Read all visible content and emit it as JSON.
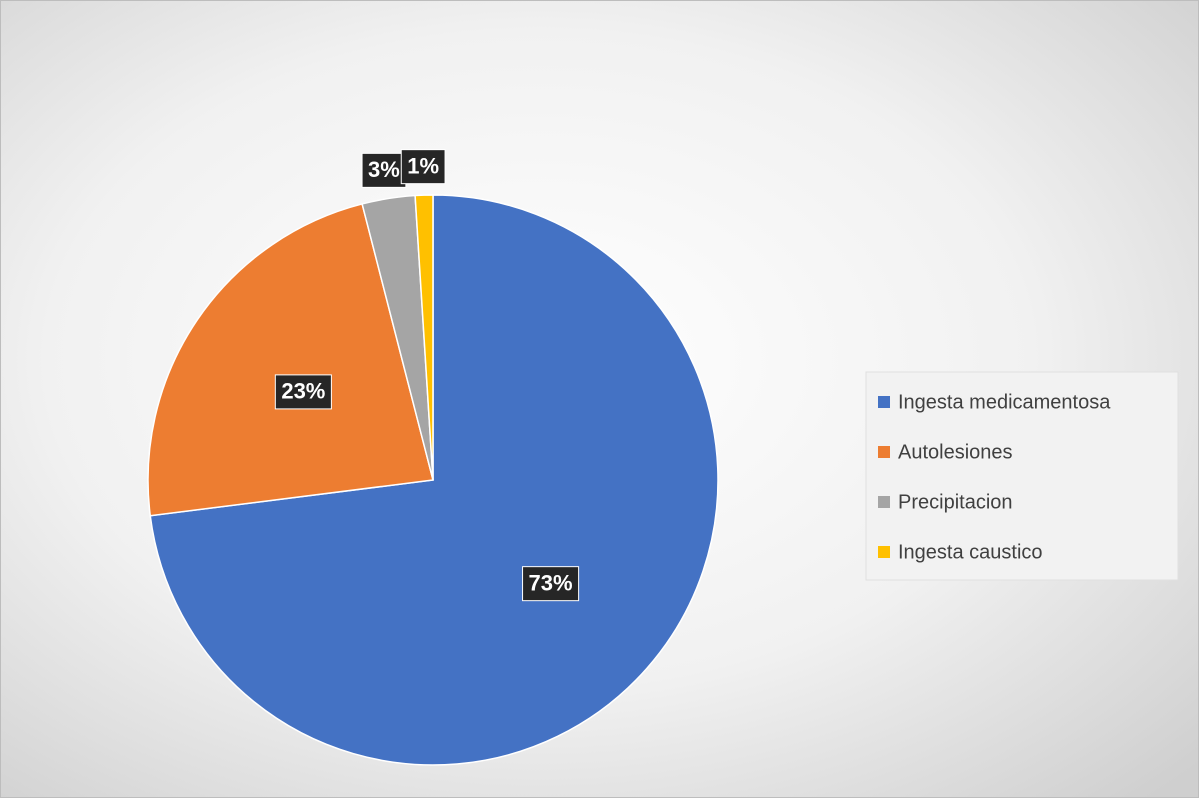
{
  "chart_data": {
    "type": "pie",
    "categories": [
      "Ingesta medicamentosa",
      "Autolesiones",
      "Precipitacion",
      "Ingesta caustico"
    ],
    "values": [
      73,
      23,
      3,
      1
    ],
    "value_labels": [
      "73%",
      "23%",
      "3%",
      "1%"
    ],
    "colors": [
      "#4472c4",
      "#ed7d31",
      "#a5a5a5",
      "#ffc000"
    ],
    "legend": "right"
  }
}
